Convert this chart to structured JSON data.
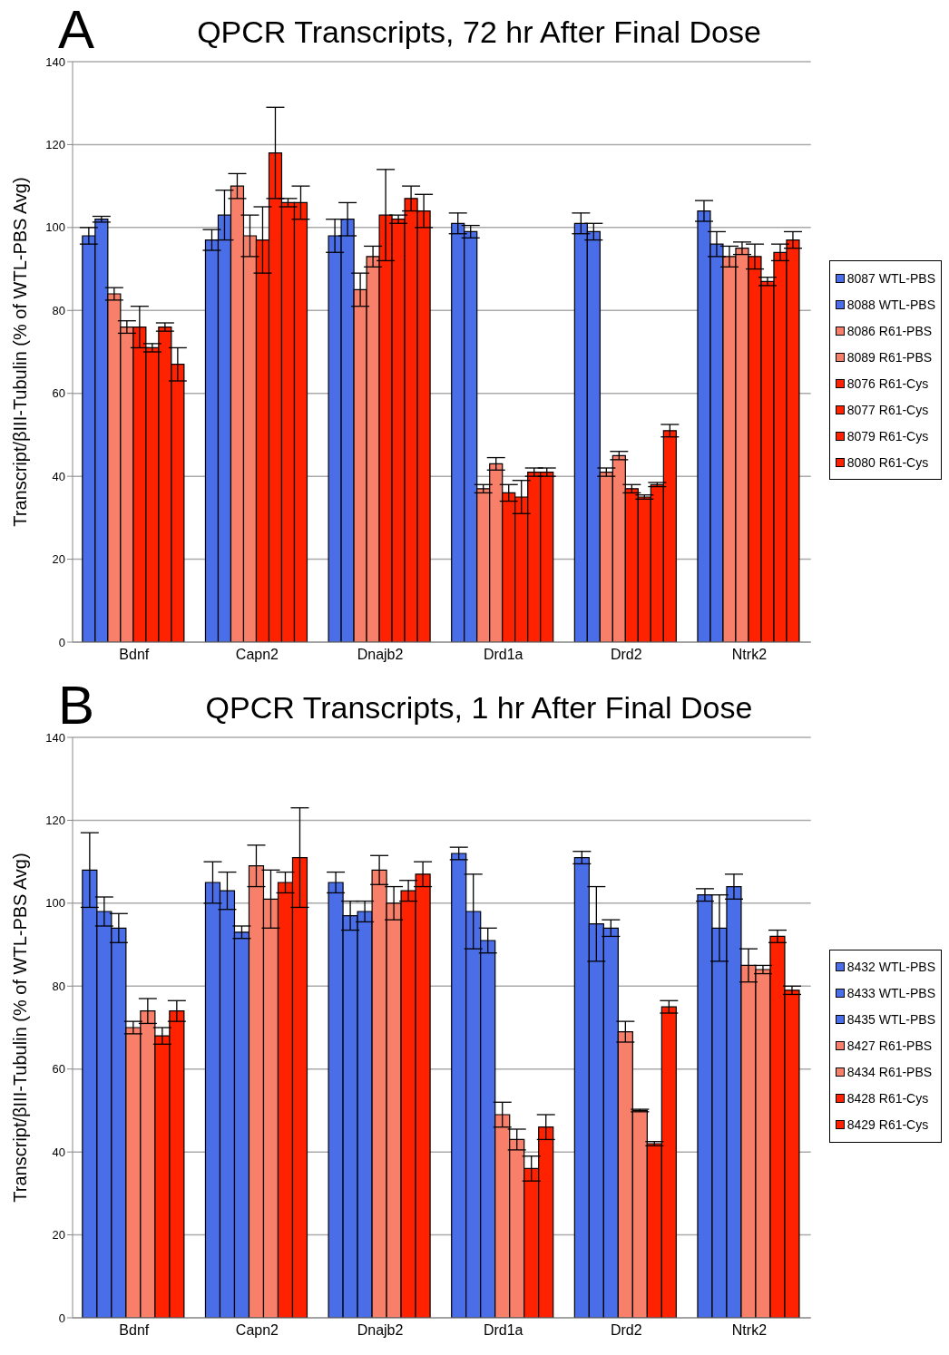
{
  "chart_data": [
    {
      "type": "bar",
      "title": "QPCR Transcripts, 72 hr After Final Dose",
      "annotations": [
        "A"
      ],
      "ylabel": "Transcript/βIII-Tubulin (% of WTL-PBS Avg)",
      "categories": [
        "Bdnf",
        "Capn2",
        "Dnajb2",
        "Drd1a",
        "Drd2",
        "Ntrk2"
      ],
      "ylim": [
        0,
        140
      ],
      "yticks": [
        0,
        20,
        40,
        60,
        80,
        100,
        120,
        140
      ],
      "grid": "y",
      "legend": "right",
      "series": [
        {
          "name": "8087 WTL-PBS",
          "color": "#4a6ee8",
          "values": [
            98,
            97,
            98,
            101,
            101,
            104
          ],
          "errors": [
            2,
            2.5,
            4,
            2.5,
            2.5,
            2.5
          ]
        },
        {
          "name": "8088 WTL-PBS",
          "color": "#4a6ee8",
          "values": [
            102,
            103,
            102,
            99,
            99,
            96
          ],
          "errors": [
            0.7,
            6,
            4,
            1.5,
            2,
            3
          ]
        },
        {
          "name": "8086 R61-PBS",
          "color": "#f8806a",
          "values": [
            84,
            110,
            85,
            37,
            41,
            93
          ],
          "errors": [
            1.5,
            3,
            4,
            1,
            1,
            2.5
          ]
        },
        {
          "name": "8089 R61-PBS",
          "color": "#f8806a",
          "values": [
            76,
            98,
            93,
            43,
            45,
            95
          ],
          "errors": [
            1.5,
            5,
            2.5,
            1.5,
            1,
            1.5
          ]
        },
        {
          "name": "8076 R61-Cys",
          "color": "#ff2200",
          "values": [
            76,
            97,
            103,
            36,
            37,
            93
          ],
          "errors": [
            5,
            8,
            11,
            2,
            1,
            3
          ]
        },
        {
          "name": "8077 R61-Cys",
          "color": "#ff2200",
          "values": [
            71,
            118,
            102,
            35,
            35,
            87
          ],
          "errors": [
            1,
            11,
            1,
            4,
            0.5,
            1
          ]
        },
        {
          "name": "8079 R61-Cys",
          "color": "#ff2200",
          "values": [
            76,
            106,
            107,
            41,
            38,
            94
          ],
          "errors": [
            1,
            1,
            3,
            1,
            0.5,
            2
          ]
        },
        {
          "name": "8080 R61-Cys",
          "color": "#ff2200",
          "values": [
            67,
            106,
            104,
            41,
            51,
            97
          ],
          "errors": [
            4,
            4,
            4,
            1,
            1.5,
            2
          ]
        }
      ]
    },
    {
      "type": "bar",
      "title": "QPCR Transcripts, 1 hr After Final Dose",
      "annotations": [
        "B"
      ],
      "ylabel": "Transcript/βIII-Tubulin (% of WTL-PBS Avg)",
      "categories": [
        "Bdnf",
        "Capn2",
        "Dnajb2",
        "Drd1a",
        "Drd2",
        "Ntrk2"
      ],
      "ylim": [
        0,
        140
      ],
      "yticks": [
        0,
        20,
        40,
        60,
        80,
        100,
        120,
        140
      ],
      "grid": "y",
      "legend": "right",
      "series": [
        {
          "name": "8432 WTL-PBS",
          "color": "#4a6ee8",
          "values": [
            108,
            105,
            105,
            112,
            111,
            102
          ],
          "errors": [
            9,
            5,
            2.5,
            1.5,
            1.5,
            1.5
          ]
        },
        {
          "name": "8433 WTL-PBS",
          "color": "#4a6ee8",
          "values": [
            98,
            103,
            97,
            98,
            95,
            94
          ],
          "errors": [
            3.5,
            4.5,
            3.5,
            9,
            9,
            8
          ]
        },
        {
          "name": "8435 WTL-PBS",
          "color": "#4a6ee8",
          "values": [
            94,
            93,
            98,
            91,
            94,
            104
          ],
          "errors": [
            3.5,
            1.5,
            2.5,
            3,
            2,
            3
          ]
        },
        {
          "name": "8427 R61-PBS",
          "color": "#f8806a",
          "values": [
            70,
            109,
            108,
            49,
            69,
            85
          ],
          "errors": [
            1.5,
            5,
            3.5,
            3,
            2.5,
            4
          ]
        },
        {
          "name": "8434 R61-PBS",
          "color": "#f8806a",
          "values": [
            74,
            101,
            100,
            43,
            50,
            84
          ],
          "errors": [
            3,
            7,
            4,
            2.5,
            0.3,
            1
          ]
        },
        {
          "name": "8428 R61-Cys",
          "color": "#ff2200",
          "values": [
            68,
            105,
            103,
            36,
            42,
            92
          ],
          "errors": [
            2,
            2.5,
            2.5,
            3,
            0.5,
            1.5
          ]
        },
        {
          "name": "8429 R61-Cys",
          "color": "#ff2200",
          "values": [
            74,
            111,
            107,
            46,
            75,
            79
          ],
          "errors": [
            2.5,
            12,
            3,
            3,
            1.5,
            1
          ]
        }
      ]
    }
  ]
}
